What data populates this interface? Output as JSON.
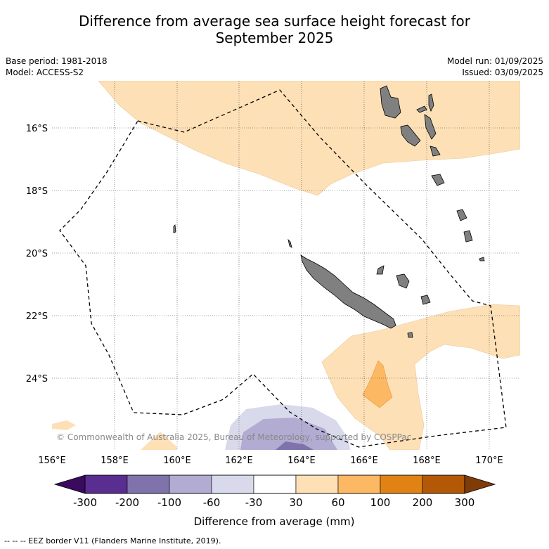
{
  "title_line1": "Difference from average sea surface height forecast for",
  "title_line2": "September 2025",
  "base_period": "Base period: 1981-2018",
  "model": "Model: ACCESS-S2",
  "model_run": "Model run: 01/09/2025",
  "issued": "Issued: 03/09/2025",
  "copyright": "© Commonwealth of Australia 2025, Bureau of Meteorology, supported by COSPPac",
  "lon_labels": [
    "156°E",
    "158°E",
    "160°E",
    "162°E",
    "164°E",
    "166°E",
    "168°E",
    "170°E"
  ],
  "lat_labels": [
    "16°S",
    "18°S",
    "20°S",
    "22°S",
    "24°S"
  ],
  "colorbar": {
    "ticks": [
      "-300",
      "-200",
      "-100",
      "-60",
      "-30",
      "30",
      "60",
      "100",
      "200",
      "300"
    ],
    "colors": [
      "#3a0a5e",
      "#5a2d91",
      "#8073ac",
      "#b2abd2",
      "#d8daeb",
      "#ffffff",
      "#fee0b6",
      "#fdb863",
      "#e08214",
      "#b35806",
      "#7f3b08"
    ],
    "label": "Difference from average (mm)"
  },
  "footer": "-- -- -- EEZ border V11 (Flanders Marine Institute, 2019)."
}
